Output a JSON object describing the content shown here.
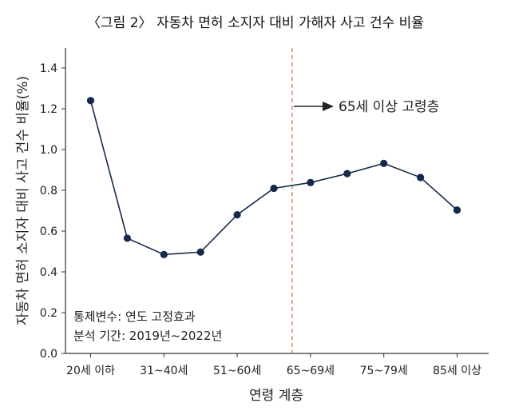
{
  "chart_data": {
    "type": "line",
    "title": "〈그림 2〉 자동차 면허 소지자 대비 가해자 사고 건수 비율",
    "xlabel": "연령 계층",
    "ylabel": "자동차 면허 소지자 대비 사고 건수 비율(%)",
    "ylim": [
      0.0,
      1.4
    ],
    "yticks": [
      "0.0",
      "0.2",
      "0.4",
      "0.6",
      "0.8",
      "1.0",
      "1.2",
      "1.4"
    ],
    "x_tick_labels": [
      "20세 이하",
      "31~40세",
      "51~60세",
      "65~69세",
      "75~79세",
      "85세 이상"
    ],
    "points": [
      {
        "index": 0,
        "value": 1.24
      },
      {
        "index": 1,
        "value": 0.565
      },
      {
        "index": 2,
        "value": 0.485
      },
      {
        "index": 3,
        "value": 0.497
      },
      {
        "index": 4,
        "value": 0.68
      },
      {
        "index": 5,
        "value": 0.81
      },
      {
        "index": 6,
        "value": 0.838
      },
      {
        "index": 7,
        "value": 0.882
      },
      {
        "index": 8,
        "value": 0.932
      },
      {
        "index": 9,
        "value": 0.863
      },
      {
        "index": 10,
        "value": 0.703
      }
    ],
    "annotation": "65세 이상 고령층",
    "notes": [
      "통제변수: 연도 고정효과",
      "분석 기간: 2019년~2022년"
    ],
    "grid": false,
    "colors": {
      "line": "#15294a",
      "marker": "#15294a",
      "divider": "#e07a5f",
      "axis": "#333333"
    }
  }
}
